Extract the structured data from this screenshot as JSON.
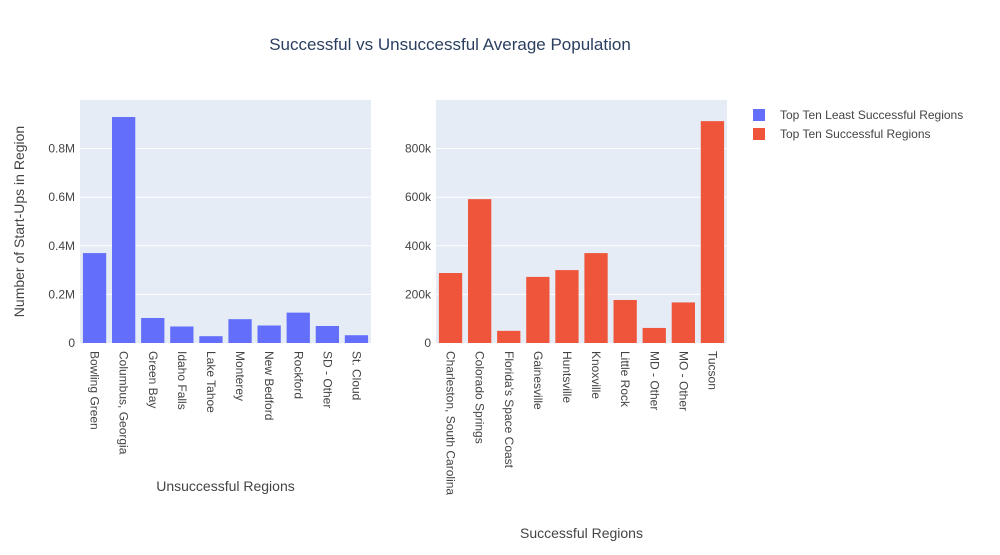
{
  "chart_data": {
    "title": "Successful vs Unsuccessful Average Population",
    "colors": {
      "unsuccessful": "#636efa",
      "successful": "#ef553b",
      "plot_bg": "#e5ecf6",
      "grid": "#ffffff",
      "text": "#444444",
      "title_text": "#2a3f5f"
    },
    "legend": {
      "placement": "top-right",
      "entries": [
        {
          "label": "Top Ten Least Successful Regions",
          "series": "unsuccessful"
        },
        {
          "label": "Top Ten Successful Regions",
          "series": "successful"
        }
      ]
    },
    "subplots": [
      {
        "type": "bar",
        "series": "unsuccessful",
        "xlabel": "Unsuccessful Regions",
        "ylabel": "Number of Start-Ups in Region",
        "ylim": [
          0,
          1000000
        ],
        "yticks": [
          0,
          200000,
          400000,
          600000,
          800000
        ],
        "ytick_labels": [
          "0",
          "0.2M",
          "0.4M",
          "0.6M",
          "0.8M"
        ],
        "grid": true,
        "categories": [
          "Bowling Green",
          "Columbus, Georgia",
          "Green Bay",
          "Idaho Falls",
          "Lake Tahoe",
          "Monterey",
          "New Bedford",
          "Rockford",
          "SD - Other",
          "St. Cloud"
        ],
        "values": [
          370000,
          930000,
          103000,
          68000,
          28000,
          98000,
          72000,
          125000,
          70000,
          32000
        ]
      },
      {
        "type": "bar",
        "series": "successful",
        "xlabel": "Successful Regions",
        "ylabel": "",
        "ylim": [
          0,
          1000000
        ],
        "yticks": [
          0,
          200000,
          400000,
          600000,
          800000
        ],
        "ytick_labels": [
          "0",
          "200k",
          "400k",
          "600k",
          "800k"
        ],
        "grid": true,
        "categories": [
          "Charleston, South Carolina",
          "Colorado Springs",
          "Florida's Space Coast",
          "Gainesville",
          "Huntsville",
          "Knoxville",
          "Little Rock",
          "MD - Other",
          "MO - Other",
          "Tucson"
        ],
        "values": [
          288000,
          592000,
          50000,
          272000,
          300000,
          370000,
          177000,
          62000,
          167000,
          913000
        ]
      }
    ]
  }
}
